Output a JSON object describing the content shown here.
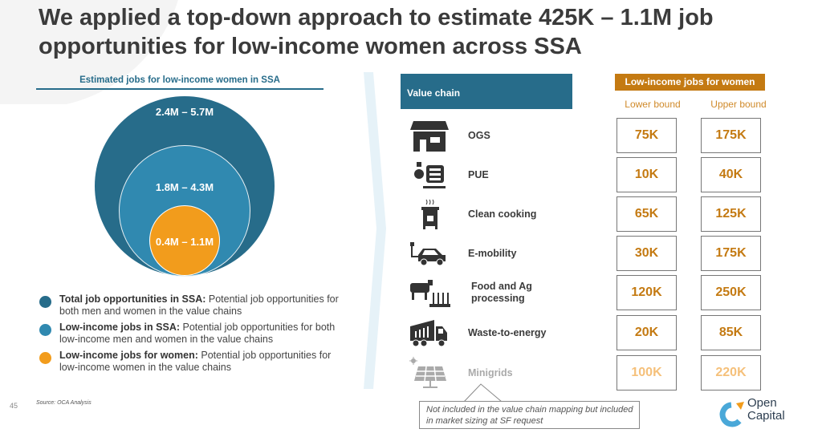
{
  "title": "We applied a top-down approach to estimate 425K – 1.1M job opportunities for low-income women across SSA",
  "left": {
    "subtitle": "Estimated jobs for low-income women in SSA",
    "circles": [
      {
        "label": "2.4M – 5.7M",
        "color": "#276c8a"
      },
      {
        "label": "1.8M – 4.3M",
        "color": "#3089b0"
      },
      {
        "label": "0.4M – 1.1M",
        "color": "#f29c1c"
      }
    ],
    "legend": [
      {
        "bold": "Total job opportunities in SSA:",
        "text": " Potential job opportunities for both men and women in the value chains",
        "color": "#276c8a"
      },
      {
        "bold": "Low-income jobs in SSA:",
        "text": " Potential job opportunities for both low-income men and women in the value chains",
        "color": "#3089b0"
      },
      {
        "bold": "Low-income jobs for women:",
        "text": " Potential job opportunities for low-income women in the value chains",
        "color": "#f29c1c"
      }
    ]
  },
  "table": {
    "value_chain_header": "Value chain",
    "jobs_header": "Low-income jobs for women",
    "lower_label": "Lower bound",
    "upper_label": "Upper bound",
    "rows": [
      {
        "name": "OGS",
        "icon": "solar-house-icon",
        "lower": "75K",
        "upper": "175K"
      },
      {
        "name": "PUE",
        "icon": "motor-pump-icon",
        "lower": "10K",
        "upper": "40K"
      },
      {
        "name": "Clean cooking",
        "icon": "cookstove-icon",
        "lower": "65K",
        "upper": "125K"
      },
      {
        "name": "E-mobility",
        "icon": "electric-car-icon",
        "lower": "30K",
        "upper": "175K"
      },
      {
        "name": "Food and Ag processing",
        "icon": "cow-crops-icon",
        "lower": "120K",
        "upper": "250K"
      },
      {
        "name": "Waste-to-energy",
        "icon": "truck-icon",
        "lower": "20K",
        "upper": "85K"
      },
      {
        "name": "Minigrids",
        "icon": "solar-panel-icon",
        "lower": "100K",
        "upper": "220K"
      }
    ],
    "note": "Not included in the value chain mapping but included in market sizing at SF request"
  },
  "footer": {
    "page": "45",
    "source": "Source: OCA Analysis",
    "logo": "Open Capital"
  }
}
